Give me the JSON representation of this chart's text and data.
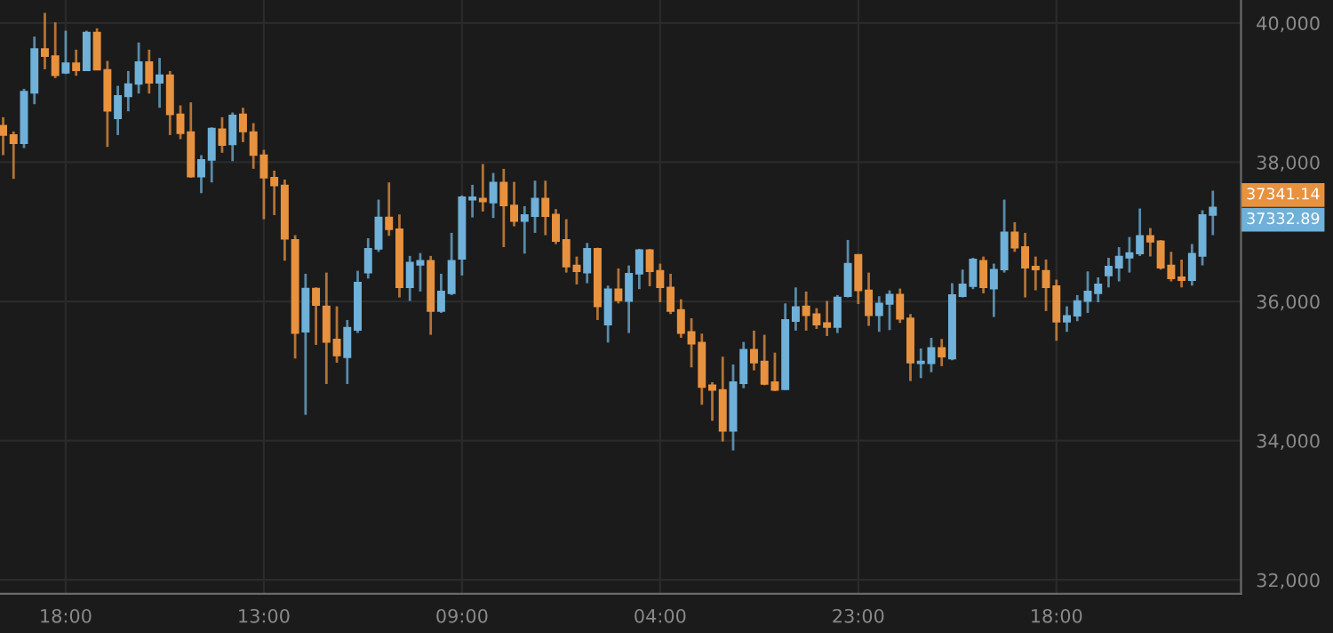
{
  "chart_data": {
    "type": "candlestick",
    "categories": [
      null,
      null,
      null,
      null,
      null,
      null,
      "18:00",
      null,
      null,
      null,
      null,
      null,
      null,
      null,
      null,
      null,
      null,
      null,
      null,
      null,
      null,
      null,
      null,
      null,
      null,
      "13:00",
      null,
      null,
      null,
      null,
      null,
      null,
      null,
      null,
      null,
      null,
      null,
      null,
      null,
      null,
      null,
      null,
      null,
      null,
      "09:00",
      null,
      null,
      null,
      null,
      null,
      null,
      null,
      null,
      null,
      null,
      null,
      null,
      null,
      null,
      null,
      null,
      null,
      null,
      "04:00",
      null,
      null,
      null,
      null,
      null,
      null,
      null,
      null,
      null,
      null,
      null,
      null,
      null,
      null,
      null,
      null,
      null,
      null,
      "23:00",
      null,
      null,
      null,
      null,
      null,
      null,
      null,
      null,
      null,
      null,
      null,
      null,
      null,
      null,
      null,
      null,
      null,
      null,
      "18:00",
      null,
      null,
      null,
      null,
      null,
      null,
      null,
      null,
      null,
      null,
      null,
      null,
      null,
      null,
      null
    ],
    "ohlc": [
      [
        38526,
        38646,
        38101,
        38390
      ],
      [
        38390,
        38441,
        37760,
        38271
      ],
      [
        38271,
        39054,
        38203,
        39012
      ],
      [
        38995,
        39804,
        38833,
        39625
      ],
      [
        39625,
        40145,
        39335,
        39523
      ],
      [
        39523,
        40008,
        39208,
        39250
      ],
      [
        39284,
        39889,
        39267,
        39421
      ],
      [
        39421,
        39617,
        39242,
        39318
      ],
      [
        39318,
        39889,
        39310,
        39864
      ],
      [
        39864,
        39923,
        39327,
        39327
      ],
      [
        39327,
        39455,
        38220,
        38739
      ],
      [
        38629,
        39097,
        38390,
        38952
      ],
      [
        38944,
        39310,
        38731,
        39123
      ],
      [
        39123,
        39719,
        38986,
        39438
      ],
      [
        39438,
        39617,
        38986,
        39140
      ],
      [
        39140,
        39497,
        38782,
        39250
      ],
      [
        39250,
        39310,
        38390,
        38688
      ],
      [
        38688,
        38816,
        38331,
        38416
      ],
      [
        38433,
        38859,
        37777,
        37794
      ],
      [
        37794,
        38101,
        37555,
        38032
      ],
      [
        38032,
        38501,
        37709,
        38484
      ],
      [
        38475,
        38646,
        38135,
        38245
      ],
      [
        38254,
        38714,
        38015,
        38671
      ],
      [
        38688,
        38782,
        38288,
        38441
      ],
      [
        38433,
        38561,
        37905,
        38101
      ],
      [
        38101,
        38177,
        37181,
        37777
      ],
      [
        37777,
        37879,
        37240,
        37666
      ],
      [
        37666,
        37751,
        36585,
        36900
      ],
      [
        36883,
        36951,
        35179,
        35545
      ],
      [
        35563,
        36397,
        34370,
        36184
      ],
      [
        36184,
        36201,
        35375,
        35946
      ],
      [
        35929,
        36414,
        34813,
        35418
      ],
      [
        35452,
        35929,
        35120,
        35222
      ],
      [
        35196,
        35733,
        34813,
        35622
      ],
      [
        35588,
        36440,
        35546,
        36270
      ],
      [
        36414,
        36908,
        36329,
        36755
      ],
      [
        36755,
        37462,
        36712,
        37206
      ],
      [
        37206,
        37709,
        36942,
        37036
      ],
      [
        37036,
        37249,
        36057,
        36201
      ],
      [
        36201,
        36653,
        36006,
        36559
      ],
      [
        36525,
        36695,
        36142,
        36585
      ],
      [
        36585,
        36653,
        35520,
        35861
      ],
      [
        35861,
        36397,
        35835,
        36142
      ],
      [
        36116,
        36985,
        36091,
        36585
      ],
      [
        36610,
        37522,
        36372,
        37496
      ],
      [
        37462,
        37675,
        37206,
        37496
      ],
      [
        37479,
        37973,
        37291,
        37436
      ],
      [
        37419,
        37845,
        37198,
        37709
      ],
      [
        37709,
        37905,
        36780,
        37377
      ],
      [
        37377,
        37717,
        37079,
        37155
      ],
      [
        37155,
        37368,
        36687,
        37240
      ],
      [
        37223,
        37734,
        36985,
        37479
      ],
      [
        37479,
        37734,
        36951,
        37223
      ],
      [
        37249,
        37326,
        36823,
        36866
      ],
      [
        36883,
        37181,
        36414,
        36499
      ],
      [
        36516,
        36644,
        36244,
        36431
      ],
      [
        36414,
        36840,
        36261,
        36755
      ],
      [
        36755,
        36772,
        35733,
        35929
      ],
      [
        35665,
        36227,
        35409,
        36176
      ],
      [
        36176,
        36474,
        35971,
        36014
      ],
      [
        36005,
        36516,
        35546,
        36397
      ],
      [
        36397,
        36755,
        36176,
        36738
      ],
      [
        36738,
        36755,
        36218,
        36431
      ],
      [
        36440,
        36542,
        35988,
        36201
      ],
      [
        36201,
        36397,
        35818,
        35861
      ],
      [
        35878,
        36031,
        35477,
        35546
      ],
      [
        35563,
        35758,
        35052,
        35392
      ],
      [
        35409,
        35537,
        34515,
        34770
      ],
      [
        34796,
        34839,
        34285,
        34728
      ],
      [
        34728,
        35205,
        33987,
        34140
      ],
      [
        34140,
        35094,
        33859,
        34839
      ],
      [
        34822,
        35418,
        34753,
        35307
      ],
      [
        35307,
        35580,
        35009,
        35120
      ],
      [
        35137,
        35520,
        34796,
        34813
      ],
      [
        34839,
        35264,
        34711,
        34728
      ],
      [
        34736,
        35971,
        34728,
        35733
      ],
      [
        35716,
        36201,
        35580,
        35920
      ],
      [
        35929,
        36142,
        35580,
        35801
      ],
      [
        35818,
        35903,
        35605,
        35665
      ],
      [
        35690,
        36005,
        35503,
        35631
      ],
      [
        35631,
        36091,
        35546,
        36057
      ],
      [
        36074,
        36883,
        36057,
        36542
      ],
      [
        36670,
        36670,
        35963,
        36159
      ],
      [
        36159,
        36414,
        35648,
        35801
      ],
      [
        35801,
        36074,
        35563,
        35971
      ],
      [
        35963,
        36159,
        35588,
        36099
      ],
      [
        36099,
        36184,
        35690,
        35750
      ],
      [
        35758,
        35818,
        34856,
        35120
      ],
      [
        35111,
        35324,
        34898,
        35137
      ],
      [
        35111,
        35477,
        34983,
        35333
      ],
      [
        35333,
        35460,
        35069,
        35205
      ],
      [
        35179,
        36261,
        35154,
        36091
      ],
      [
        36074,
        36457,
        36057,
        36244
      ],
      [
        36218,
        36627,
        36176,
        36602
      ],
      [
        36585,
        36644,
        36116,
        36201
      ],
      [
        36184,
        36542,
        35776,
        36457
      ],
      [
        36457,
        37462,
        36414,
        36993
      ],
      [
        36993,
        37138,
        36712,
        36772
      ],
      [
        36780,
        36985,
        36057,
        36482
      ],
      [
        36499,
        36644,
        36159,
        36457
      ],
      [
        36440,
        36602,
        35861,
        36201
      ],
      [
        36218,
        36312,
        35435,
        35707
      ],
      [
        35707,
        35929,
        35563,
        35793
      ],
      [
        35793,
        36091,
        35716,
        36005
      ],
      [
        36005,
        36431,
        35835,
        36142
      ],
      [
        36116,
        36346,
        35988,
        36244
      ],
      [
        36372,
        36627,
        36201,
        36499
      ],
      [
        36482,
        36780,
        36287,
        36644
      ],
      [
        36627,
        36925,
        36414,
        36695
      ],
      [
        36687,
        37334,
        36653,
        36942
      ],
      [
        36942,
        37053,
        36644,
        36857
      ],
      [
        36866,
        36883,
        36457,
        36482
      ],
      [
        36516,
        36712,
        36287,
        36329
      ],
      [
        36346,
        36602,
        36201,
        36304
      ],
      [
        36304,
        36823,
        36227,
        36687
      ],
      [
        36653,
        37309,
        36516,
        37240
      ],
      [
        37240,
        37590,
        36951,
        37351
      ]
    ],
    "colors": [
      "#e8923f",
      "#e8923f",
      "#6fb1d9",
      "#6fb1d9",
      "#e8923f",
      "#e8923f",
      "#6fb1d9",
      "#e8923f",
      "#6fb1d9",
      "#e8923f",
      "#e8923f",
      "#6fb1d9",
      "#6fb1d9",
      "#6fb1d9",
      "#e8923f",
      "#6fb1d9",
      "#e8923f",
      "#e8923f",
      "#e8923f",
      "#6fb1d9",
      "#6fb1d9",
      "#e8923f",
      "#6fb1d9",
      "#e8923f",
      "#e8923f",
      "#e8923f",
      "#e8923f",
      "#e8923f",
      "#e8923f",
      "#6fb1d9",
      "#e8923f",
      "#e8923f",
      "#e8923f",
      "#6fb1d9",
      "#6fb1d9",
      "#6fb1d9",
      "#6fb1d9",
      "#e8923f",
      "#e8923f",
      "#6fb1d9",
      "#6fb1d9",
      "#e8923f",
      "#6fb1d9",
      "#6fb1d9",
      "#6fb1d9",
      "#6fb1d9",
      "#e8923f",
      "#6fb1d9",
      "#e8923f",
      "#e8923f",
      "#6fb1d9",
      "#6fb1d9",
      "#e8923f",
      "#e8923f",
      "#e8923f",
      "#e8923f",
      "#6fb1d9",
      "#e8923f",
      "#6fb1d9",
      "#e8923f",
      "#6fb1d9",
      "#6fb1d9",
      "#e8923f",
      "#e8923f",
      "#e8923f",
      "#e8923f",
      "#e8923f",
      "#e8923f",
      "#e8923f",
      "#e8923f",
      "#6fb1d9",
      "#6fb1d9",
      "#e8923f",
      "#e8923f",
      "#e8923f",
      "#6fb1d9",
      "#6fb1d9",
      "#e8923f",
      "#e8923f",
      "#e8923f",
      "#6fb1d9",
      "#6fb1d9",
      "#e8923f",
      "#e8923f",
      "#6fb1d9",
      "#6fb1d9",
      "#e8923f",
      "#e8923f",
      "#6fb1d9",
      "#6fb1d9",
      "#e8923f",
      "#6fb1d9",
      "#6fb1d9",
      "#6fb1d9",
      "#e8923f",
      "#6fb1d9",
      "#6fb1d9",
      "#e8923f",
      "#e8923f",
      "#e8923f",
      "#e8923f",
      "#e8923f",
      "#6fb1d9",
      "#6fb1d9",
      "#6fb1d9",
      "#6fb1d9",
      "#6fb1d9",
      "#6fb1d9",
      "#6fb1d9",
      "#6fb1d9",
      "#e8923f",
      "#e8923f",
      "#e8923f",
      "#e8923f",
      "#6fb1d9",
      "#6fb1d9",
      "#6fb1d9"
    ],
    "ylim": [
      31800,
      40330
    ],
    "yticks": [
      {
        "value": 32000,
        "label": "32,000"
      },
      {
        "value": 34000,
        "label": "34,000"
      },
      {
        "value": 36000,
        "label": "36,000"
      },
      {
        "value": 38000,
        "label": "38,000"
      },
      {
        "value": 40000,
        "label": "40,000"
      }
    ],
    "grid": true,
    "annotations": [
      "37341.14",
      "37332.89"
    ]
  }
}
